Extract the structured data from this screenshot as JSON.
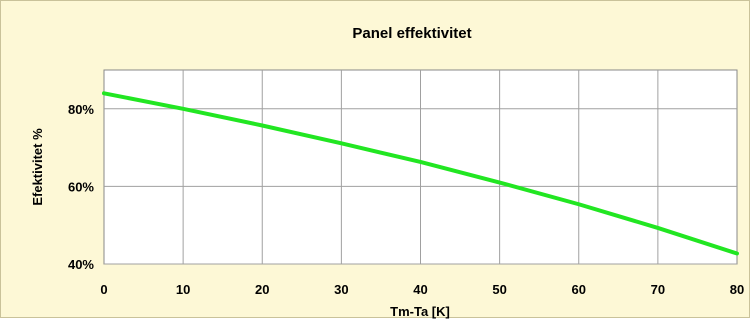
{
  "chart_data": {
    "type": "line",
    "title": "Panel effektivitet",
    "xlabel": "Tm-Ta [K]",
    "ylabel": "Efektivitet %",
    "xlim": [
      0,
      80
    ],
    "ylim": [
      40,
      90
    ],
    "x_ticks": [
      0,
      10,
      20,
      30,
      40,
      50,
      60,
      70,
      80
    ],
    "y_ticks": [
      40,
      60,
      80
    ],
    "y_tick_labels": [
      "40%",
      "60%",
      "80%"
    ],
    "grid": true,
    "series": [
      {
        "color": "#22e622",
        "x": [
          0,
          10,
          20,
          30,
          40,
          50,
          60,
          70,
          80
        ],
        "y": [
          84,
          80,
          75.7,
          71.1,
          66.3,
          61,
          55.4,
          49.3,
          42.7
        ]
      }
    ]
  },
  "colors": {
    "background": "#fdf8d6",
    "plot_area": "#ffffff",
    "grid": "#a0a0a0"
  }
}
